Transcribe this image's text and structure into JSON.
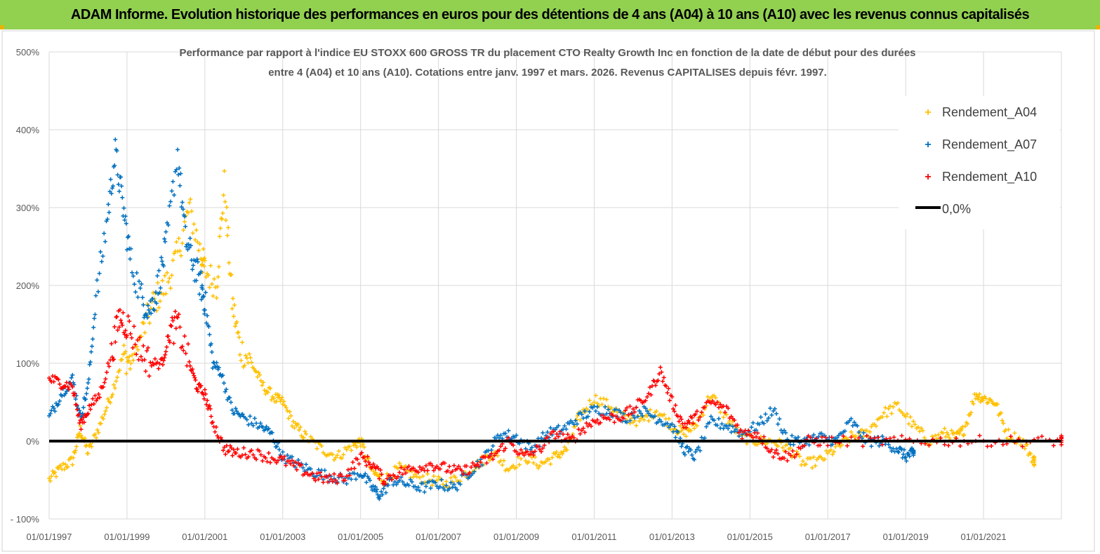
{
  "header": {
    "title": "ADAM Informe. Evolution historique des performances en euros pour des détentions de 4 ans (A04) à 10 ans (A10) avec les revenus connus capitalisés"
  },
  "colors": {
    "banner": "#92d050",
    "a04": "#ffc000",
    "a07": "#0070c0",
    "a10": "#ff0000",
    "zero": "#000000",
    "grid": "#d9d9d9"
  },
  "chart_data": {
    "type": "scatter",
    "title_lines": [
      "Performance par rapport à l'indice EU STOXX 600 GROSS TR  du placement CTO Realty Growth Inc en fonction de la date de début pour des durées",
      "entre 4 (A04) et 10 ans (A10). Cotations entre janv. 1997 et mars. 2026. Revenus CAPITALISES depuis févr. 1997."
    ],
    "xlabel": "",
    "ylabel": "",
    "x_range": [
      "1997-01-01",
      "2023-01-01"
    ],
    "ylim": [
      -100,
      500
    ],
    "y_ticks": [
      "- 100%",
      "0%",
      "100%",
      "200%",
      "300%",
      "400%",
      "500%"
    ],
    "y_tick_values": [
      -100,
      0,
      100,
      200,
      300,
      400,
      500
    ],
    "x_ticks": [
      "01/01/1997",
      "01/01/1999",
      "01/01/2001",
      "01/01/2003",
      "01/01/2005",
      "01/01/2007",
      "01/01/2009",
      "01/01/2011",
      "01/01/2013",
      "01/01/2015",
      "01/01/2017",
      "01/01/2019",
      "01/01/2021"
    ],
    "x_tick_values": [
      1997,
      1999,
      2001,
      2003,
      2005,
      2007,
      2009,
      2011,
      2013,
      2015,
      2017,
      2019,
      2021
    ],
    "grid": true,
    "legend_position": "top-right",
    "series": [
      {
        "name": "Rendement_A04",
        "color": "#ffc000",
        "x": [
          1997.0,
          1997.3,
          1997.6,
          1997.8,
          1998.0,
          1998.3,
          1998.6,
          1998.9,
          1999.1,
          1999.4,
          1999.7,
          2000.0,
          2000.3,
          2000.6,
          2000.9,
          2001.0,
          2001.3,
          2001.5,
          2001.7,
          2001.9,
          2002.2,
          2002.5,
          2002.8,
          2003.0,
          2003.3,
          2003.6,
          2004.0,
          2004.4,
          2004.8,
          2005.0,
          2005.3,
          2005.6,
          2006.0,
          2006.4,
          2006.8,
          2007.2,
          2007.6,
          2008.0,
          2008.4,
          2008.8,
          2009.2,
          2009.6,
          2010.0,
          2010.3,
          2010.6,
          2011.0,
          2011.4,
          2011.8,
          2012.2,
          2012.6,
          2013.0,
          2013.3,
          2013.6,
          2014.0,
          2014.4,
          2014.8,
          2015.2,
          2015.6,
          2016.0,
          2016.4,
          2016.8,
          2017.2,
          2017.6,
          2018.0,
          2018.4,
          2018.8,
          2019.2,
          2019.6,
          2020.0,
          2020.3,
          2020.5,
          2020.8,
          2021.0,
          2021.3,
          2021.6,
          2022.0,
          2022.3
        ],
        "y": [
          -50,
          -35,
          -25,
          15,
          -15,
          20,
          60,
          110,
          100,
          140,
          180,
          200,
          240,
          300,
          240,
          220,
          200,
          330,
          180,
          120,
          100,
          70,
          55,
          50,
          20,
          5,
          -10,
          -20,
          -5,
          0,
          -40,
          -50,
          -35,
          -45,
          -50,
          -55,
          -45,
          -30,
          -15,
          -35,
          -20,
          -30,
          -20,
          -10,
          30,
          55,
          45,
          30,
          25,
          40,
          20,
          10,
          20,
          60,
          30,
          5,
          0,
          0,
          -10,
          -30,
          -25,
          -10,
          5,
          10,
          35,
          45,
          20,
          0,
          10,
          5,
          15,
          60,
          55,
          50,
          10,
          0,
          -25
        ]
      },
      {
        "name": "Rendement_A07",
        "color": "#0070c0",
        "x": [
          1997.0,
          1997.3,
          1997.6,
          1997.8,
          1998.0,
          1998.2,
          1998.5,
          1998.7,
          1998.9,
          1999.1,
          1999.4,
          1999.6,
          1999.8,
          2000.0,
          2000.3,
          2000.5,
          2000.7,
          2000.9,
          2001.0,
          2001.2,
          2001.4,
          2001.7,
          2002.0,
          2002.4,
          2002.7,
          2003.0,
          2003.4,
          2003.8,
          2004.2,
          2004.6,
          2005.0,
          2005.3,
          2005.5,
          2005.8,
          2006.2,
          2006.6,
          2007.0,
          2007.4,
          2007.8,
          2008.2,
          2008.6,
          2009.0,
          2009.4,
          2009.8,
          2010.2,
          2010.6,
          2011.0,
          2011.4,
          2011.8,
          2012.2,
          2012.6,
          2013.0,
          2013.3,
          2013.6,
          2014.0,
          2014.4,
          2014.8,
          2015.2,
          2015.6,
          2016.0,
          2016.4,
          2016.8,
          2017.2,
          2017.6,
          2018.0,
          2018.4,
          2018.8,
          2019.0,
          2019.2
        ],
        "y": [
          30,
          60,
          80,
          30,
          70,
          180,
          290,
          370,
          300,
          230,
          180,
          170,
          200,
          250,
          370,
          260,
          230,
          200,
          180,
          100,
          90,
          40,
          30,
          20,
          10,
          -20,
          -30,
          -40,
          -45,
          -50,
          -40,
          -60,
          -70,
          -50,
          -55,
          -60,
          -55,
          -60,
          -40,
          -20,
          10,
          5,
          -10,
          10,
          15,
          30,
          40,
          40,
          30,
          40,
          30,
          20,
          -10,
          -20,
          25,
          20,
          10,
          20,
          40,
          0,
          0,
          5,
          0,
          25,
          0,
          0,
          -10,
          -20,
          -15
        ]
      },
      {
        "name": "Rendement_A10",
        "color": "#ff0000",
        "x": [
          1997.0,
          1997.3,
          1997.6,
          1997.8,
          1998.0,
          1998.3,
          1998.6,
          1998.8,
          1999.0,
          1999.3,
          1999.6,
          1999.9,
          2000.1,
          2000.3,
          2000.6,
          2000.8,
          2001.0,
          2001.2,
          2001.5,
          2001.8,
          2002.2,
          2002.6,
          2003.0,
          2003.4,
          2003.8,
          2004.2,
          2004.6,
          2005.0,
          2005.3,
          2005.6,
          2006.0,
          2006.4,
          2006.8,
          2007.2,
          2007.6,
          2008.0,
          2008.4,
          2008.8,
          2009.2,
          2009.6,
          2010.0,
          2010.4,
          2010.8,
          2011.2,
          2011.6,
          2012.0,
          2012.4,
          2012.7,
          2013.0,
          2013.3,
          2013.6,
          2014.0,
          2014.4,
          2014.8,
          2015.2,
          2015.6,
          2016.0,
          2016.5,
          2017.0,
          2018.0,
          2019.0,
          2020.0,
          2021.0,
          2022.0,
          2023.0
        ],
        "y": [
          80,
          75,
          70,
          20,
          40,
          60,
          110,
          160,
          150,
          120,
          100,
          100,
          140,
          150,
          100,
          70,
          60,
          25,
          -10,
          -15,
          -15,
          -20,
          -25,
          -35,
          -45,
          -50,
          -45,
          -20,
          -30,
          -50,
          -40,
          -35,
          -30,
          -35,
          -40,
          -30,
          -20,
          0,
          -20,
          -10,
          10,
          0,
          20,
          30,
          30,
          40,
          60,
          90,
          50,
          20,
          30,
          50,
          40,
          10,
          10,
          -15,
          -20,
          0,
          0,
          0,
          0,
          0,
          0,
          0,
          0
        ]
      },
      {
        "name": "0,0%",
        "color": "#000000",
        "x": [
          1997.0,
          2023.0
        ],
        "y": [
          0,
          0
        ]
      }
    ]
  }
}
